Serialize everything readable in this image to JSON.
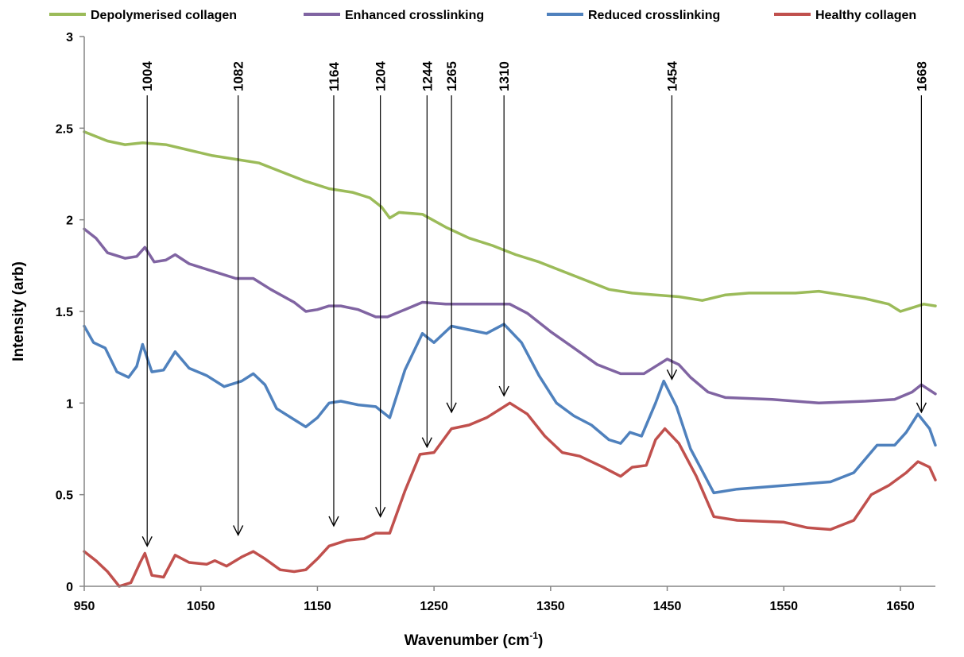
{
  "chart_data": {
    "type": "line",
    "title": "",
    "xlabel": "Wavenumber (cm",
    "xlabel_sup": "-1",
    "xlabel_close": ")",
    "ylabel": "Intensity (arb)",
    "xlim": [
      950,
      1680
    ],
    "ylim": [
      0,
      3
    ],
    "x_ticks": [
      950,
      1050,
      1150,
      1250,
      1350,
      1450,
      1550,
      1650
    ],
    "y_ticks": [
      0,
      0.5,
      1,
      1.5,
      2,
      2.5,
      3
    ],
    "y_tick_labels": [
      "0",
      "0.5",
      "1",
      "1.5",
      "2",
      "2.5",
      "3"
    ],
    "grid": false,
    "legend_position": "top",
    "series": [
      {
        "name": "Depolymerised collagen",
        "color": "#9bbb59",
        "points": [
          [
            950,
            2.48
          ],
          [
            970,
            2.43
          ],
          [
            985,
            2.41
          ],
          [
            1000,
            2.42
          ],
          [
            1020,
            2.41
          ],
          [
            1040,
            2.38
          ],
          [
            1060,
            2.35
          ],
          [
            1080,
            2.33
          ],
          [
            1100,
            2.31
          ],
          [
            1120,
            2.26
          ],
          [
            1140,
            2.21
          ],
          [
            1160,
            2.17
          ],
          [
            1180,
            2.15
          ],
          [
            1195,
            2.12
          ],
          [
            1205,
            2.07
          ],
          [
            1212,
            2.01
          ],
          [
            1220,
            2.04
          ],
          [
            1240,
            2.03
          ],
          [
            1260,
            1.96
          ],
          [
            1280,
            1.9
          ],
          [
            1300,
            1.86
          ],
          [
            1320,
            1.81
          ],
          [
            1340,
            1.77
          ],
          [
            1360,
            1.72
          ],
          [
            1380,
            1.67
          ],
          [
            1400,
            1.62
          ],
          [
            1420,
            1.6
          ],
          [
            1440,
            1.59
          ],
          [
            1460,
            1.58
          ],
          [
            1480,
            1.56
          ],
          [
            1500,
            1.59
          ],
          [
            1520,
            1.6
          ],
          [
            1540,
            1.6
          ],
          [
            1560,
            1.6
          ],
          [
            1580,
            1.61
          ],
          [
            1600,
            1.59
          ],
          [
            1620,
            1.57
          ],
          [
            1640,
            1.54
          ],
          [
            1650,
            1.5
          ],
          [
            1660,
            1.52
          ],
          [
            1670,
            1.54
          ],
          [
            1680,
            1.53
          ]
        ]
      },
      {
        "name": "Enhanced crosslinking",
        "color": "#8064a2",
        "points": [
          [
            950,
            1.95
          ],
          [
            960,
            1.9
          ],
          [
            970,
            1.82
          ],
          [
            985,
            1.79
          ],
          [
            995,
            1.8
          ],
          [
            1002,
            1.85
          ],
          [
            1010,
            1.77
          ],
          [
            1020,
            1.78
          ],
          [
            1028,
            1.81
          ],
          [
            1040,
            1.76
          ],
          [
            1060,
            1.72
          ],
          [
            1080,
            1.68
          ],
          [
            1095,
            1.68
          ],
          [
            1110,
            1.62
          ],
          [
            1130,
            1.55
          ],
          [
            1140,
            1.5
          ],
          [
            1150,
            1.51
          ],
          [
            1160,
            1.53
          ],
          [
            1170,
            1.53
          ],
          [
            1185,
            1.51
          ],
          [
            1200,
            1.47
          ],
          [
            1210,
            1.47
          ],
          [
            1225,
            1.51
          ],
          [
            1240,
            1.55
          ],
          [
            1260,
            1.54
          ],
          [
            1280,
            1.54
          ],
          [
            1300,
            1.54
          ],
          [
            1315,
            1.54
          ],
          [
            1330,
            1.49
          ],
          [
            1350,
            1.39
          ],
          [
            1370,
            1.3
          ],
          [
            1390,
            1.21
          ],
          [
            1410,
            1.16
          ],
          [
            1430,
            1.16
          ],
          [
            1440,
            1.2
          ],
          [
            1450,
            1.24
          ],
          [
            1460,
            1.21
          ],
          [
            1470,
            1.14
          ],
          [
            1485,
            1.06
          ],
          [
            1500,
            1.03
          ],
          [
            1540,
            1.02
          ],
          [
            1580,
            1.0
          ],
          [
            1620,
            1.01
          ],
          [
            1645,
            1.02
          ],
          [
            1660,
            1.06
          ],
          [
            1668,
            1.1
          ],
          [
            1680,
            1.05
          ]
        ]
      },
      {
        "name": "Reduced crosslinking",
        "color": "#4f81bd",
        "points": [
          [
            950,
            1.42
          ],
          [
            958,
            1.33
          ],
          [
            968,
            1.3
          ],
          [
            978,
            1.17
          ],
          [
            988,
            1.14
          ],
          [
            995,
            1.2
          ],
          [
            1000,
            1.32
          ],
          [
            1008,
            1.17
          ],
          [
            1018,
            1.18
          ],
          [
            1028,
            1.28
          ],
          [
            1040,
            1.19
          ],
          [
            1055,
            1.15
          ],
          [
            1070,
            1.09
          ],
          [
            1085,
            1.12
          ],
          [
            1095,
            1.16
          ],
          [
            1105,
            1.1
          ],
          [
            1115,
            0.97
          ],
          [
            1130,
            0.91
          ],
          [
            1140,
            0.87
          ],
          [
            1150,
            0.92
          ],
          [
            1160,
            1.0
          ],
          [
            1170,
            1.01
          ],
          [
            1185,
            0.99
          ],
          [
            1200,
            0.98
          ],
          [
            1212,
            0.92
          ],
          [
            1225,
            1.18
          ],
          [
            1240,
            1.38
          ],
          [
            1250,
            1.33
          ],
          [
            1265,
            1.42
          ],
          [
            1280,
            1.4
          ],
          [
            1295,
            1.38
          ],
          [
            1310,
            1.43
          ],
          [
            1325,
            1.33
          ],
          [
            1340,
            1.15
          ],
          [
            1355,
            1.0
          ],
          [
            1370,
            0.93
          ],
          [
            1385,
            0.88
          ],
          [
            1400,
            0.8
          ],
          [
            1410,
            0.78
          ],
          [
            1418,
            0.84
          ],
          [
            1428,
            0.82
          ],
          [
            1440,
            1.0
          ],
          [
            1447,
            1.12
          ],
          [
            1458,
            0.98
          ],
          [
            1470,
            0.75
          ],
          [
            1490,
            0.51
          ],
          [
            1510,
            0.53
          ],
          [
            1550,
            0.55
          ],
          [
            1590,
            0.57
          ],
          [
            1610,
            0.62
          ],
          [
            1630,
            0.77
          ],
          [
            1645,
            0.77
          ],
          [
            1655,
            0.84
          ],
          [
            1665,
            0.94
          ],
          [
            1675,
            0.86
          ],
          [
            1680,
            0.77
          ]
        ]
      },
      {
        "name": "Healthy collagen",
        "color": "#c0504d",
        "points": [
          [
            950,
            0.19
          ],
          [
            960,
            0.14
          ],
          [
            970,
            0.08
          ],
          [
            980,
            0.0
          ],
          [
            990,
            0.02
          ],
          [
            998,
            0.13
          ],
          [
            1002,
            0.18
          ],
          [
            1008,
            0.06
          ],
          [
            1018,
            0.05
          ],
          [
            1028,
            0.17
          ],
          [
            1040,
            0.13
          ],
          [
            1055,
            0.12
          ],
          [
            1062,
            0.14
          ],
          [
            1072,
            0.11
          ],
          [
            1085,
            0.16
          ],
          [
            1095,
            0.19
          ],
          [
            1105,
            0.15
          ],
          [
            1118,
            0.09
          ],
          [
            1130,
            0.08
          ],
          [
            1140,
            0.09
          ],
          [
            1150,
            0.15
          ],
          [
            1160,
            0.22
          ],
          [
            1175,
            0.25
          ],
          [
            1190,
            0.26
          ],
          [
            1200,
            0.29
          ],
          [
            1212,
            0.29
          ],
          [
            1225,
            0.52
          ],
          [
            1238,
            0.72
          ],
          [
            1250,
            0.73
          ],
          [
            1265,
            0.86
          ],
          [
            1280,
            0.88
          ],
          [
            1295,
            0.92
          ],
          [
            1315,
            1.0
          ],
          [
            1330,
            0.94
          ],
          [
            1345,
            0.82
          ],
          [
            1360,
            0.73
          ],
          [
            1375,
            0.71
          ],
          [
            1395,
            0.65
          ],
          [
            1410,
            0.6
          ],
          [
            1420,
            0.65
          ],
          [
            1432,
            0.66
          ],
          [
            1440,
            0.8
          ],
          [
            1448,
            0.86
          ],
          [
            1460,
            0.78
          ],
          [
            1475,
            0.6
          ],
          [
            1490,
            0.38
          ],
          [
            1510,
            0.36
          ],
          [
            1550,
            0.35
          ],
          [
            1570,
            0.32
          ],
          [
            1590,
            0.31
          ],
          [
            1610,
            0.36
          ],
          [
            1625,
            0.5
          ],
          [
            1640,
            0.55
          ],
          [
            1655,
            0.62
          ],
          [
            1665,
            0.68
          ],
          [
            1675,
            0.65
          ],
          [
            1680,
            0.58
          ]
        ]
      }
    ],
    "annotations": [
      {
        "label": "1004",
        "x": 1004,
        "y_tip": 0.22
      },
      {
        "label": "1082",
        "x": 1082,
        "y_tip": 0.28
      },
      {
        "label": "1164",
        "x": 1164,
        "y_tip": 0.33
      },
      {
        "label": "1204",
        "x": 1204,
        "y_tip": 0.38
      },
      {
        "label": "1244",
        "x": 1244,
        "y_tip": 0.76
      },
      {
        "label": "1265",
        "x": 1265,
        "y_tip": 0.95
      },
      {
        "label": "1310",
        "x": 1310,
        "y_tip": 1.04
      },
      {
        "label": "1454",
        "x": 1454,
        "y_tip": 1.13
      },
      {
        "label": "1668",
        "x": 1668,
        "y_tip": 0.95
      }
    ]
  }
}
